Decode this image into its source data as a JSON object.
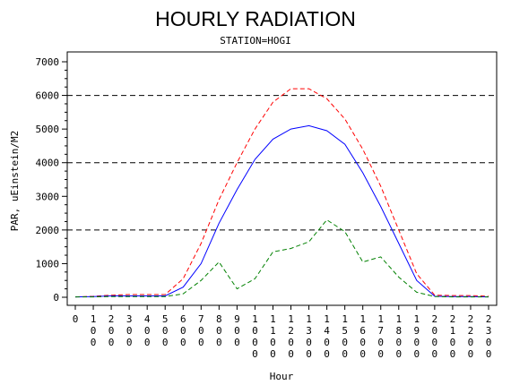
{
  "chart_data": {
    "type": "line",
    "title": "HOURLY RADIATION",
    "subtitle": "STATION=HOGI",
    "xlabel": "Hour",
    "ylabel": "PAR, uEinstein/M2",
    "ylim": [
      0,
      7000
    ],
    "yticks": [
      "0",
      "1000",
      "2000",
      "3000",
      "4000",
      "5000",
      "6000",
      "7000"
    ],
    "reference_lines": [
      2000,
      4000,
      6000
    ],
    "grid": false,
    "x": [
      "0",
      "100",
      "200",
      "300",
      "400",
      "500",
      "600",
      "700",
      "800",
      "900",
      "1000",
      "1100",
      "1200",
      "1300",
      "1400",
      "1500",
      "1600",
      "1700",
      "1800",
      "1900",
      "2000",
      "2100",
      "2200",
      "2300"
    ],
    "series": [
      {
        "color": "#ff0000",
        "dash": "dashed",
        "values": [
          10,
          30,
          60,
          80,
          80,
          80,
          550,
          1600,
          2900,
          4000,
          5000,
          5800,
          6200,
          6200,
          5900,
          5300,
          4400,
          3300,
          2000,
          700,
          60,
          50,
          50,
          30
        ]
      },
      {
        "color": "#0000ff",
        "dash": "solid",
        "values": [
          10,
          20,
          40,
          40,
          40,
          40,
          300,
          1000,
          2200,
          3200,
          4100,
          4700,
          5000,
          5100,
          4950,
          4550,
          3700,
          2700,
          1600,
          500,
          30,
          20,
          20,
          10
        ]
      },
      {
        "color": "#008000",
        "dash": "dashed",
        "values": [
          10,
          10,
          20,
          20,
          20,
          20,
          100,
          500,
          1050,
          250,
          550,
          1350,
          1450,
          1650,
          2300,
          1950,
          1050,
          1200,
          600,
          150,
          20,
          10,
          10,
          10
        ]
      }
    ]
  }
}
